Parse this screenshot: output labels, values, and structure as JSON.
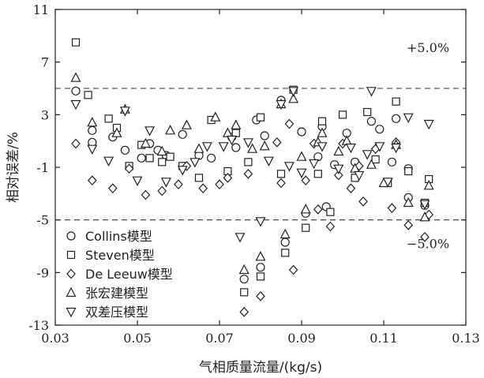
{
  "chart_data": {
    "type": "scatter",
    "xlabel": "气相质量流量/(kg/s)",
    "ylabel": "相对误差/%",
    "xlim": [
      0.03,
      0.13
    ],
    "ylim": [
      -13,
      11
    ],
    "xticks": [
      "0.03",
      "0.05",
      "0.07",
      "0.09",
      "0.11",
      "0.13"
    ],
    "yticks": [
      "11",
      "7",
      "3",
      "-1",
      "-5",
      "-9",
      "-13"
    ],
    "reference_lines": [
      {
        "y": 5,
        "label": "+5.0%"
      },
      {
        "y": -5,
        "label": "−5.0%"
      }
    ],
    "legend_position": "bottom-left",
    "series": [
      {
        "name": "Collins模型",
        "marker": "circle",
        "points": [
          [
            0.035,
            4.8
          ],
          [
            0.039,
            1.8
          ],
          [
            0.039,
            0.9
          ],
          [
            0.044,
            1.3
          ],
          [
            0.047,
            0.3
          ],
          [
            0.051,
            -0.3
          ],
          [
            0.053,
            0.8
          ],
          [
            0.055,
            0.3
          ],
          [
            0.057,
            -0.1
          ],
          [
            0.061,
            1.5
          ],
          [
            0.065,
            -0.1
          ],
          [
            0.068,
            -0.3
          ],
          [
            0.073,
            1.3
          ],
          [
            0.074,
            0.5
          ],
          [
            0.076,
            -9.5
          ],
          [
            0.079,
            2.6
          ],
          [
            0.08,
            -8.6
          ],
          [
            0.081,
            1.4
          ],
          [
            0.085,
            4.1
          ],
          [
            0.086,
            -6.7
          ],
          [
            0.09,
            1.7
          ],
          [
            0.091,
            -4.5
          ],
          [
            0.094,
            -0.2
          ],
          [
            0.095,
            2.1
          ],
          [
            0.096,
            -4
          ],
          [
            0.098,
            -0.8
          ],
          [
            0.101,
            1.6
          ],
          [
            0.103,
            -0.6
          ],
          [
            0.107,
            2.5
          ],
          [
            0.109,
            1.9
          ],
          [
            0.112,
            -0.6
          ],
          [
            0.113,
            2.7
          ],
          [
            0.116,
            -1.1
          ],
          [
            0.116,
            -3.3
          ],
          [
            0.12,
            -3.9
          ]
        ]
      },
      {
        "name": "Steven模型",
        "marker": "square",
        "points": [
          [
            0.035,
            8.5
          ],
          [
            0.038,
            4.5
          ],
          [
            0.043,
            2.7
          ],
          [
            0.045,
            2
          ],
          [
            0.048,
            -0.9
          ],
          [
            0.051,
            0.7
          ],
          [
            0.053,
            -0.3
          ],
          [
            0.056,
            -0.6
          ],
          [
            0.058,
            -0.2
          ],
          [
            0.061,
            -0.9
          ],
          [
            0.065,
            -1.8
          ],
          [
            0.068,
            2.6
          ],
          [
            0.072,
            -1.3
          ],
          [
            0.074,
            1.6
          ],
          [
            0.076,
            -10.5
          ],
          [
            0.077,
            -0.6
          ],
          [
            0.08,
            2.8
          ],
          [
            0.08,
            -9.3
          ],
          [
            0.085,
            -1.5
          ],
          [
            0.086,
            -7.5
          ],
          [
            0.088,
            4.9
          ],
          [
            0.091,
            -5.6
          ],
          [
            0.094,
            -1.5
          ],
          [
            0.095,
            2.5
          ],
          [
            0.097,
            -4.4
          ],
          [
            0.1,
            3
          ],
          [
            0.103,
            -1.8
          ],
          [
            0.106,
            3.2
          ],
          [
            0.108,
            -0.4
          ],
          [
            0.111,
            -2.2
          ],
          [
            0.113,
            4
          ],
          [
            0.116,
            -1.3
          ],
          [
            0.12,
            -3.7
          ],
          [
            0.121,
            -1.9
          ]
        ]
      },
      {
        "name": "De Leeuw模型",
        "marker": "diamond",
        "points": [
          [
            0.035,
            0.8
          ],
          [
            0.039,
            -2
          ],
          [
            0.044,
            -2.6
          ],
          [
            0.048,
            -1.1
          ],
          [
            0.052,
            -3.1
          ],
          [
            0.056,
            -2.8
          ],
          [
            0.06,
            -2.3
          ],
          [
            0.062,
            -0.9
          ],
          [
            0.066,
            -2.6
          ],
          [
            0.07,
            -2.3
          ],
          [
            0.072,
            -1.8
          ],
          [
            0.076,
            -12
          ],
          [
            0.077,
            -1.5
          ],
          [
            0.08,
            -10.8
          ],
          [
            0.084,
            0.9
          ],
          [
            0.085,
            -2.2
          ],
          [
            0.087,
            2.3
          ],
          [
            0.088,
            -8.8
          ],
          [
            0.091,
            -2
          ],
          [
            0.093,
            0.8
          ],
          [
            0.094,
            -4.2
          ],
          [
            0.097,
            -5.5
          ],
          [
            0.099,
            -1.6
          ],
          [
            0.1,
            0.8
          ],
          [
            0.102,
            -2.6
          ],
          [
            0.104,
            -0.9
          ],
          [
            0.105,
            -3.6
          ],
          [
            0.108,
            0.4
          ],
          [
            0.112,
            -4.1
          ],
          [
            0.113,
            0.9
          ],
          [
            0.116,
            -5.4
          ],
          [
            0.12,
            -6.3
          ],
          [
            0.121,
            -4.6
          ]
        ]
      },
      {
        "name": "张宏建模型",
        "marker": "triangle-up",
        "points": [
          [
            0.035,
            5.8
          ],
          [
            0.039,
            2.4
          ],
          [
            0.045,
            1.6
          ],
          [
            0.047,
            3.4
          ],
          [
            0.052,
            0.8
          ],
          [
            0.056,
            0.2
          ],
          [
            0.058,
            1.8
          ],
          [
            0.062,
            2.2
          ],
          [
            0.065,
            0.4
          ],
          [
            0.069,
            2.8
          ],
          [
            0.072,
            1.6
          ],
          [
            0.074,
            2.2
          ],
          [
            0.076,
            -8.8
          ],
          [
            0.078,
            0.4
          ],
          [
            0.08,
            -7.8
          ],
          [
            0.081,
            0.6
          ],
          [
            0.085,
            3.8
          ],
          [
            0.086,
            -6.1
          ],
          [
            0.088,
            4.2
          ],
          [
            0.09,
            -0.2
          ],
          [
            0.091,
            -4.2
          ],
          [
            0.094,
            0.9
          ],
          [
            0.095,
            1.6
          ],
          [
            0.099,
            0.2
          ],
          [
            0.101,
            1
          ],
          [
            0.103,
            -1.1
          ],
          [
            0.107,
            -0.8
          ],
          [
            0.11,
            -2.2
          ],
          [
            0.113,
            0.7
          ],
          [
            0.116,
            -3.7
          ],
          [
            0.12,
            -4.8
          ],
          [
            0.121,
            -2.4
          ]
        ]
      },
      {
        "name": "双差压模型",
        "marker": "triangle-down",
        "points": [
          [
            0.035,
            3.8
          ],
          [
            0.039,
            0.4
          ],
          [
            0.043,
            -0.5
          ],
          [
            0.047,
            3.3
          ],
          [
            0.05,
            -2
          ],
          [
            0.053,
            1.8
          ],
          [
            0.057,
            -2.1
          ],
          [
            0.061,
            -1.2
          ],
          [
            0.064,
            -0.6
          ],
          [
            0.067,
            0.6
          ],
          [
            0.071,
            0.6
          ],
          [
            0.073,
            1.1
          ],
          [
            0.075,
            -6.3
          ],
          [
            0.077,
            0.9
          ],
          [
            0.08,
            -5.1
          ],
          [
            0.082,
            -0.5
          ],
          [
            0.085,
            3.8
          ],
          [
            0.087,
            -0.9
          ],
          [
            0.088,
            4.8
          ],
          [
            0.09,
            -1.4
          ],
          [
            0.093,
            -0.7
          ],
          [
            0.095,
            0.6
          ],
          [
            0.099,
            -1.1
          ],
          [
            0.102,
            0.5
          ],
          [
            0.104,
            -1.6
          ],
          [
            0.106,
            0
          ],
          [
            0.107,
            4.8
          ],
          [
            0.109,
            0.6
          ],
          [
            0.111,
            -2.1
          ],
          [
            0.113,
            0.5
          ],
          [
            0.116,
            2.8
          ],
          [
            0.12,
            -3.8
          ],
          [
            0.121,
            2.3
          ]
        ]
      }
    ]
  }
}
